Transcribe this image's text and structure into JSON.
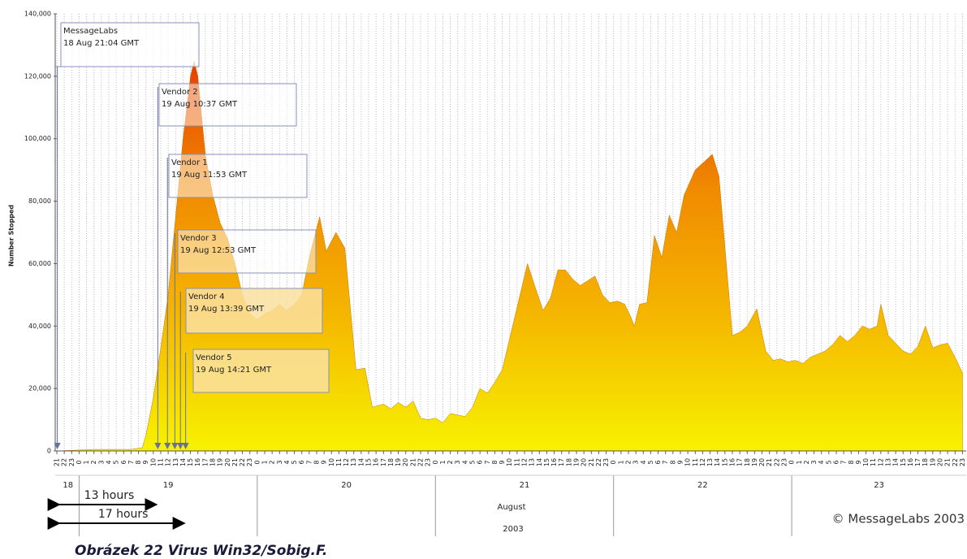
{
  "chart_data": {
    "type": "area",
    "ylabel": "Number Stopped",
    "x": [
      0,
      5,
      10,
      11.5,
      12,
      13,
      14,
      15,
      16,
      17,
      18,
      18.5,
      19,
      20,
      21,
      22,
      23,
      24,
      25,
      26,
      27,
      28,
      29,
      30,
      31,
      32,
      33,
      34,
      35.4,
      36.3,
      37.6,
      38.8,
      40.3,
      41.5,
      42.5,
      44,
      45,
      46,
      47,
      48,
      49,
      50,
      51,
      52,
      53,
      54,
      55,
      56,
      57,
      58,
      59,
      60,
      61,
      62,
      63.4,
      64.5,
      65.5,
      66.5,
      67.5,
      68.5,
      69.5,
      70.5,
      71.5,
      72.5,
      73.5,
      74.5,
      75.5,
      76.5,
      77.3,
      77.8,
      78.5,
      79.5,
      80.5,
      81.5,
      82.5,
      83.5,
      84.5,
      86,
      88.3,
      89.2,
      91,
      92,
      93,
      94.3,
      95.5,
      96.5,
      97.5,
      98.5,
      99.5,
      100.5,
      101.5,
      102.5,
      103.5,
      104.5,
      105.5,
      106.5,
      107.5,
      108.5,
      109.5,
      110.5,
      111,
      112,
      113,
      114,
      115,
      116,
      117,
      118,
      119,
      120,
      121,
      122
    ],
    "values": [
      0,
      500,
      500,
      1000,
      5000,
      17000,
      33000,
      50000,
      75000,
      100000,
      120000,
      125000,
      120000,
      95000,
      82000,
      73000,
      68000,
      60000,
      50000,
      44000,
      42000,
      44000,
      45000,
      47000,
      45000,
      47000,
      50000,
      62000,
      75000,
      64000,
      70000,
      65000,
      26000,
      26500,
      14000,
      15000,
      13500,
      15500,
      14000,
      16000,
      10500,
      10000,
      10500,
      9000,
      12000,
      11500,
      11000,
      14000,
      20000,
      18500,
      22000,
      26000,
      36000,
      46000,
      60000,
      52000,
      45000,
      49000,
      58000,
      58000,
      55000,
      53000,
      54500,
      56000,
      50000,
      47500,
      48000,
      47000,
      43000,
      40000,
      47000,
      47500,
      69000,
      62000,
      75500,
      70000,
      82000,
      90000,
      95000,
      88000,
      37000,
      38000,
      40000,
      45500,
      32000,
      29000,
      29500,
      28500,
      29000,
      28000,
      30000,
      31000,
      32000,
      34000,
      37000,
      35000,
      37000,
      40000,
      39000,
      40000,
      47000,
      37000,
      34500,
      32000,
      31000,
      33500,
      40000,
      33000,
      34000,
      34500,
      30000,
      25000
    ],
    "colors": [
      "#f7f200",
      "#f5b800",
      "#f08a00",
      "#e63a00"
    ],
    "xlim": [
      0,
      122.5
    ],
    "ylim": [
      0,
      140000
    ],
    "yticks": [
      0,
      {
        "value": 20000,
        "label": "20,000"
      },
      {
        "value": 40000,
        "label": "40,000"
      },
      {
        "value": 60000,
        "label": "60,000"
      },
      {
        "value": 80000,
        "label": "80,000"
      },
      {
        "value": 100000,
        "label": "100,000"
      },
      {
        "value": 120000,
        "label": "120,000"
      },
      {
        "value": 140000,
        "label": "140,000"
      }
    ],
    "xticks": [
      {
        "value": 0,
        "label": "21"
      },
      {
        "value": 1,
        "label": "22"
      },
      {
        "value": 2,
        "label": "23"
      },
      {
        "value": 3,
        "label": "0"
      },
      {
        "value": 4,
        "label": "1"
      },
      {
        "value": 5,
        "label": "2"
      },
      {
        "value": 6,
        "label": "3"
      },
      {
        "value": 7,
        "label": "4"
      },
      {
        "value": 8,
        "label": "5"
      },
      {
        "value": 9,
        "label": "6"
      },
      {
        "value": 10,
        "label": "7"
      },
      {
        "value": 11,
        "label": "8"
      },
      {
        "value": 12,
        "label": "9"
      },
      {
        "value": 13,
        "label": "10"
      },
      {
        "value": 14,
        "label": "11"
      },
      {
        "value": 15,
        "label": "12"
      },
      {
        "value": 16,
        "label": "13"
      },
      {
        "value": 17,
        "label": "14"
      },
      {
        "value": 18,
        "label": "15"
      },
      {
        "value": 19,
        "label": "16"
      },
      {
        "value": 20,
        "label": "17"
      },
      {
        "value": 21,
        "label": "18"
      },
      {
        "value": 22,
        "label": "19"
      },
      {
        "value": 23,
        "label": "20"
      },
      {
        "value": 24,
        "label": "21"
      },
      {
        "value": 25,
        "label": "22"
      },
      {
        "value": 26,
        "label": "23"
      },
      {
        "value": 27,
        "label": "0"
      },
      {
        "value": 28,
        "label": "1"
      },
      {
        "value": 29,
        "label": "2"
      },
      {
        "value": 30,
        "label": "3"
      },
      {
        "value": 31,
        "label": "4"
      },
      {
        "value": 32,
        "label": "5"
      },
      {
        "value": 33,
        "label": "6"
      },
      {
        "value": 34,
        "label": "7"
      },
      {
        "value": 35,
        "label": "8"
      },
      {
        "value": 36,
        "label": "9"
      },
      {
        "value": 37,
        "label": "10"
      },
      {
        "value": 38,
        "label": "11"
      },
      {
        "value": 39,
        "label": "12"
      },
      {
        "value": 40,
        "label": "13"
      },
      {
        "value": 41,
        "label": "14"
      },
      {
        "value": 42,
        "label": "15"
      },
      {
        "value": 43,
        "label": "16"
      },
      {
        "value": 44,
        "label": "17"
      },
      {
        "value": 45,
        "label": "18"
      },
      {
        "value": 46,
        "label": "19"
      },
      {
        "value": 47,
        "label": "20"
      },
      {
        "value": 48,
        "label": "21"
      },
      {
        "value": 49,
        "label": "22"
      },
      {
        "value": 50,
        "label": "23"
      },
      {
        "value": 51,
        "label": "0"
      },
      {
        "value": 52,
        "label": "1"
      },
      {
        "value": 53,
        "label": "2"
      },
      {
        "value": 54,
        "label": "3"
      },
      {
        "value": 55,
        "label": "4"
      },
      {
        "value": 56,
        "label": "5"
      },
      {
        "value": 57,
        "label": "6"
      },
      {
        "value": 58,
        "label": "7"
      },
      {
        "value": 59,
        "label": "8"
      },
      {
        "value": 60,
        "label": "9"
      },
      {
        "value": 61,
        "label": "10"
      },
      {
        "value": 62,
        "label": "11"
      },
      {
        "value": 63,
        "label": "12"
      },
      {
        "value": 64,
        "label": "13"
      },
      {
        "value": 65,
        "label": "14"
      },
      {
        "value": 66,
        "label": "15"
      },
      {
        "value": 67,
        "label": "16"
      },
      {
        "value": 68,
        "label": "17"
      },
      {
        "value": 69,
        "label": "18"
      },
      {
        "value": 70,
        "label": "19"
      },
      {
        "value": 71,
        "label": "20"
      },
      {
        "value": 72,
        "label": "21"
      },
      {
        "value": 73,
        "label": "22"
      },
      {
        "value": 74,
        "label": "23"
      },
      {
        "value": 75,
        "label": "0"
      },
      {
        "value": 76,
        "label": "1"
      },
      {
        "value": 77,
        "label": "2"
      },
      {
        "value": 78,
        "label": "3"
      },
      {
        "value": 79,
        "label": "4"
      },
      {
        "value": 80,
        "label": "5"
      },
      {
        "value": 81,
        "label": "6"
      },
      {
        "value": 82,
        "label": "7"
      },
      {
        "value": 83,
        "label": "8"
      },
      {
        "value": 84,
        "label": "9"
      },
      {
        "value": 85,
        "label": "10"
      },
      {
        "value": 86,
        "label": "11"
      },
      {
        "value": 87,
        "label": "12"
      },
      {
        "value": 88,
        "label": "13"
      },
      {
        "value": 89,
        "label": "14"
      },
      {
        "value": 90,
        "label": "15"
      },
      {
        "value": 91,
        "label": "16"
      },
      {
        "value": 92,
        "label": "17"
      },
      {
        "value": 93,
        "label": "18"
      },
      {
        "value": 94,
        "label": "19"
      },
      {
        "value": 95,
        "label": "20"
      },
      {
        "value": 96,
        "label": "21"
      },
      {
        "value": 97,
        "label": "22"
      },
      {
        "value": 98,
        "label": "23"
      },
      {
        "value": 99,
        "label": "0"
      },
      {
        "value": 100,
        "label": "1"
      },
      {
        "value": 101,
        "label": "2"
      },
      {
        "value": 102,
        "label": "3"
      },
      {
        "value": 103,
        "label": "4"
      },
      {
        "value": 104,
        "label": "5"
      },
      {
        "value": 105,
        "label": "6"
      },
      {
        "value": 106,
        "label": "7"
      },
      {
        "value": 107,
        "label": "8"
      },
      {
        "value": 108,
        "label": "9"
      },
      {
        "value": 109,
        "label": "10"
      },
      {
        "value": 110,
        "label": "11"
      },
      {
        "value": 111,
        "label": "12"
      },
      {
        "value": 112,
        "label": "13"
      },
      {
        "value": 113,
        "label": "14"
      },
      {
        "value": 114,
        "label": "15"
      },
      {
        "value": 115,
        "label": "16"
      },
      {
        "value": 116,
        "label": "17"
      },
      {
        "value": 117,
        "label": "18"
      },
      {
        "value": 118,
        "label": "19"
      },
      {
        "value": 119,
        "label": "20"
      },
      {
        "value": 120,
        "label": "21"
      },
      {
        "value": 121,
        "label": "22"
      },
      {
        "value": 122,
        "label": "23"
      }
    ],
    "day_boundaries": [
      3,
      27,
      51,
      75,
      99
    ],
    "day_labels": [
      "18",
      "19",
      "20",
      "21",
      "22",
      "23"
    ],
    "month": "August",
    "year": "2003",
    "grid": true,
    "annotations": [
      {
        "text": "MessageLabs",
        "time": "18 Aug 21:04 GMT",
        "x": 0.07
      },
      {
        "text": "Vendor 2",
        "time": "19 Aug 10:37 GMT",
        "x": 13.6
      },
      {
        "text": "Vendor 1",
        "time": "19 Aug 11:53 GMT",
        "x": 14.9
      },
      {
        "text": "Vendor 3",
        "time": "19 Aug 12:53 GMT",
        "x": 15.9
      },
      {
        "text": "Vendor 4",
        "time": "19 Aug 13:39 GMT",
        "x": 16.65
      },
      {
        "text": "Vendor 5",
        "time": "19 Aug 14:21 GMT",
        "x": 17.35
      }
    ],
    "spans": [
      "13 hours",
      "17 hours"
    ],
    "copyright": "© MessageLabs 2003",
    "caption": "Obrázek 22 Virus Win32/Sobig.F."
  }
}
